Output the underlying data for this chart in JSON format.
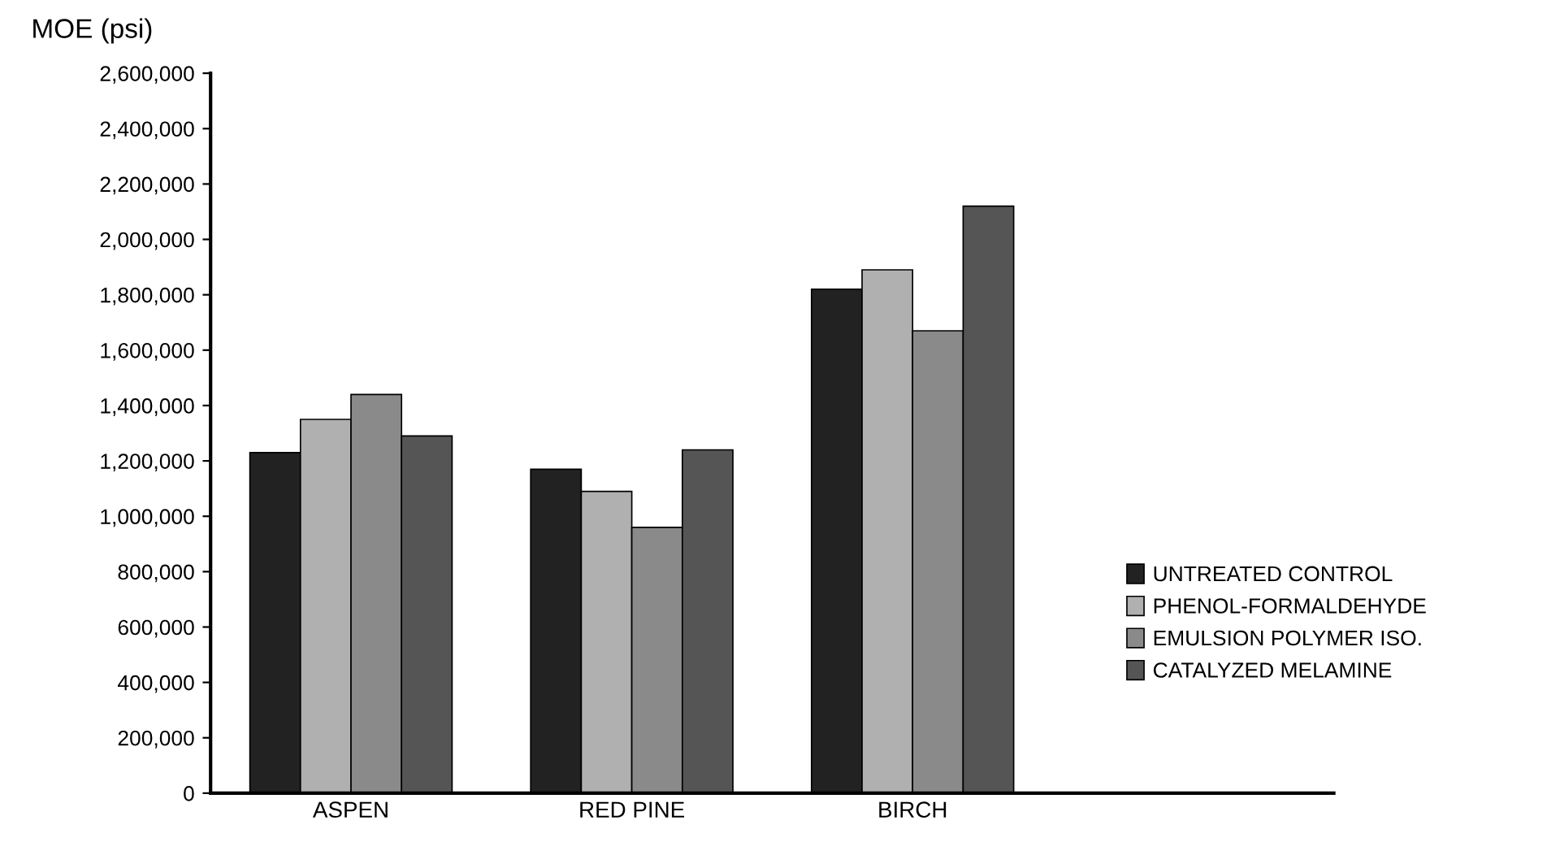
{
  "chart_data": {
    "type": "bar",
    "ylabel": "MOE (psi)",
    "categories": [
      "ASPEN",
      "RED PINE",
      "BIRCH"
    ],
    "series": [
      {
        "name": "UNTREATED CONTROL",
        "color": "#222222",
        "values": [
          1230000,
          1170000,
          1820000
        ]
      },
      {
        "name": "PHENOL-FORMALDEHYDE",
        "color": "#b0b0b0",
        "values": [
          1350000,
          1090000,
          1890000
        ]
      },
      {
        "name": "EMULSION POLYMER ISO.",
        "color": "#8a8a8a",
        "values": [
          1440000,
          960000,
          1670000
        ]
      },
      {
        "name": "CATALYZED MELAMINE",
        "color": "#555555",
        "values": [
          1290000,
          1240000,
          2120000
        ]
      }
    ],
    "ylim": [
      0,
      2600000
    ],
    "yticks": [
      {
        "value": 0,
        "label": "0"
      },
      {
        "value": 200000,
        "label": "200,000"
      },
      {
        "value": 400000,
        "label": "400,000"
      },
      {
        "value": 600000,
        "label": "600,000"
      },
      {
        "value": 800000,
        "label": "800,000"
      },
      {
        "value": 1000000,
        "label": "1,000,000"
      },
      {
        "value": 1200000,
        "label": "1,200,000"
      },
      {
        "value": 1400000,
        "label": "1,400,000"
      },
      {
        "value": 1600000,
        "label": "1,600,000"
      },
      {
        "value": 1800000,
        "label": "1,800,000"
      },
      {
        "value": 2000000,
        "label": "2,000,000"
      },
      {
        "value": 2200000,
        "label": "2,200,000"
      },
      {
        "value": 2400000,
        "label": "2,400,000"
      },
      {
        "value": 2600000,
        "label": "2,600,000"
      }
    ],
    "grid": false,
    "legend": "right"
  }
}
